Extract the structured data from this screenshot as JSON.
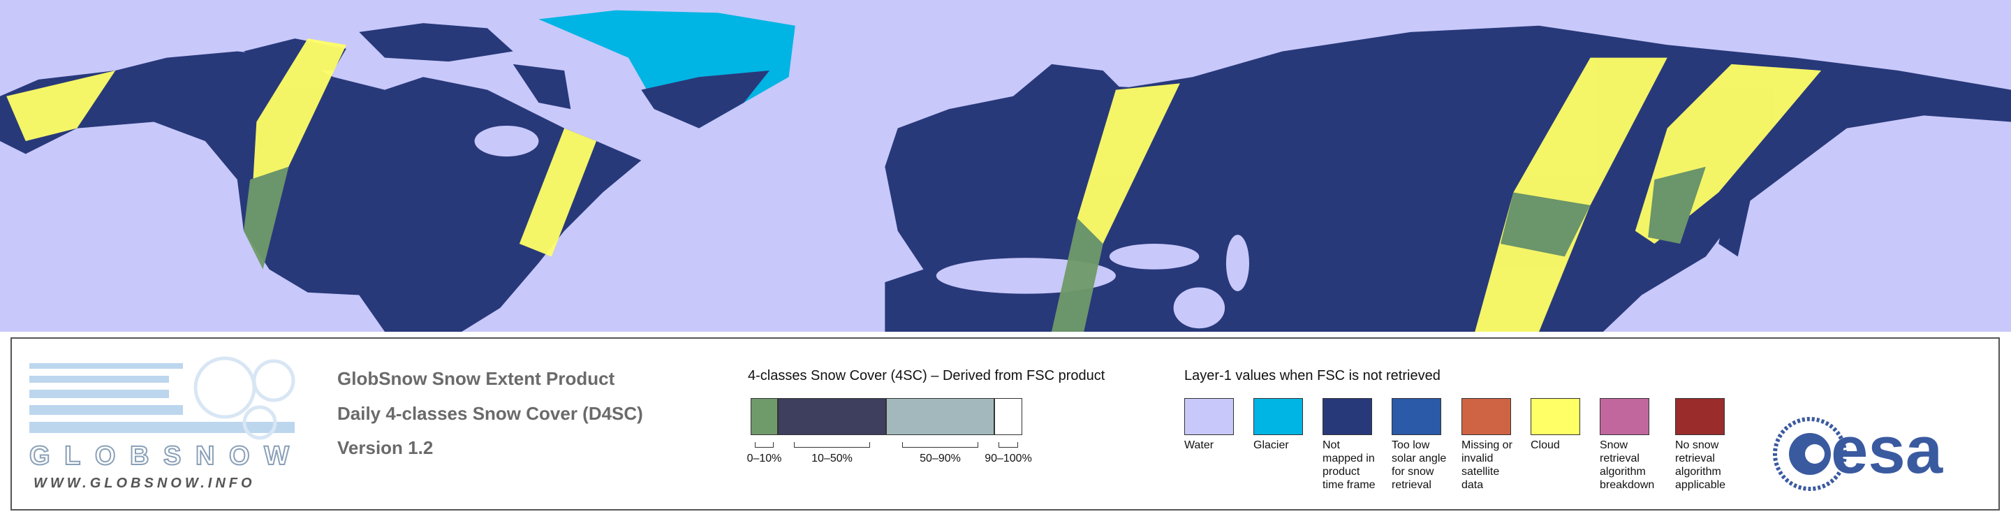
{
  "logo": {
    "name": "GLOBSNOW",
    "url": "WWW.GLOBSNOW.INFO"
  },
  "product": {
    "title": "GlobSnow Snow Extent Product",
    "subtitle": "Daily 4-classes Snow Cover (D4SC)",
    "version": "Version 1.2"
  },
  "snow_cover_legend": {
    "title": "4-classes Snow Cover (4SC) – Derived from FSC product",
    "classes": [
      {
        "label": "0–10%",
        "color": "#6f9a6a"
      },
      {
        "label": "10–50%",
        "color": "#3e3e5e"
      },
      {
        "label": "50–90%",
        "color": "#a2b8bc"
      },
      {
        "label": "90–100%",
        "color": "#ffffff"
      }
    ]
  },
  "layer1_legend": {
    "title": "Layer-1 values when FSC is not retrieved",
    "items": [
      {
        "label": "Water",
        "color": "#c8c8fa"
      },
      {
        "label": "Glacier",
        "color": "#00b4e4"
      },
      {
        "label": "Not mapped in product time frame",
        "color": "#28397a"
      },
      {
        "label": "Too low solar angle for snow retrieval",
        "color": "#2a5aa8"
      },
      {
        "label": "Missing or invalid satellite data",
        "color": "#cf6444"
      },
      {
        "label": "Cloud",
        "color": "#ffff66"
      },
      {
        "label": "Snow retrieval algorithm breakdown",
        "color": "#c2679e"
      },
      {
        "label": "No snow retrieval algorithm applicable",
        "color": "#9a2c2c"
      }
    ]
  },
  "esa_logo": "esa"
}
